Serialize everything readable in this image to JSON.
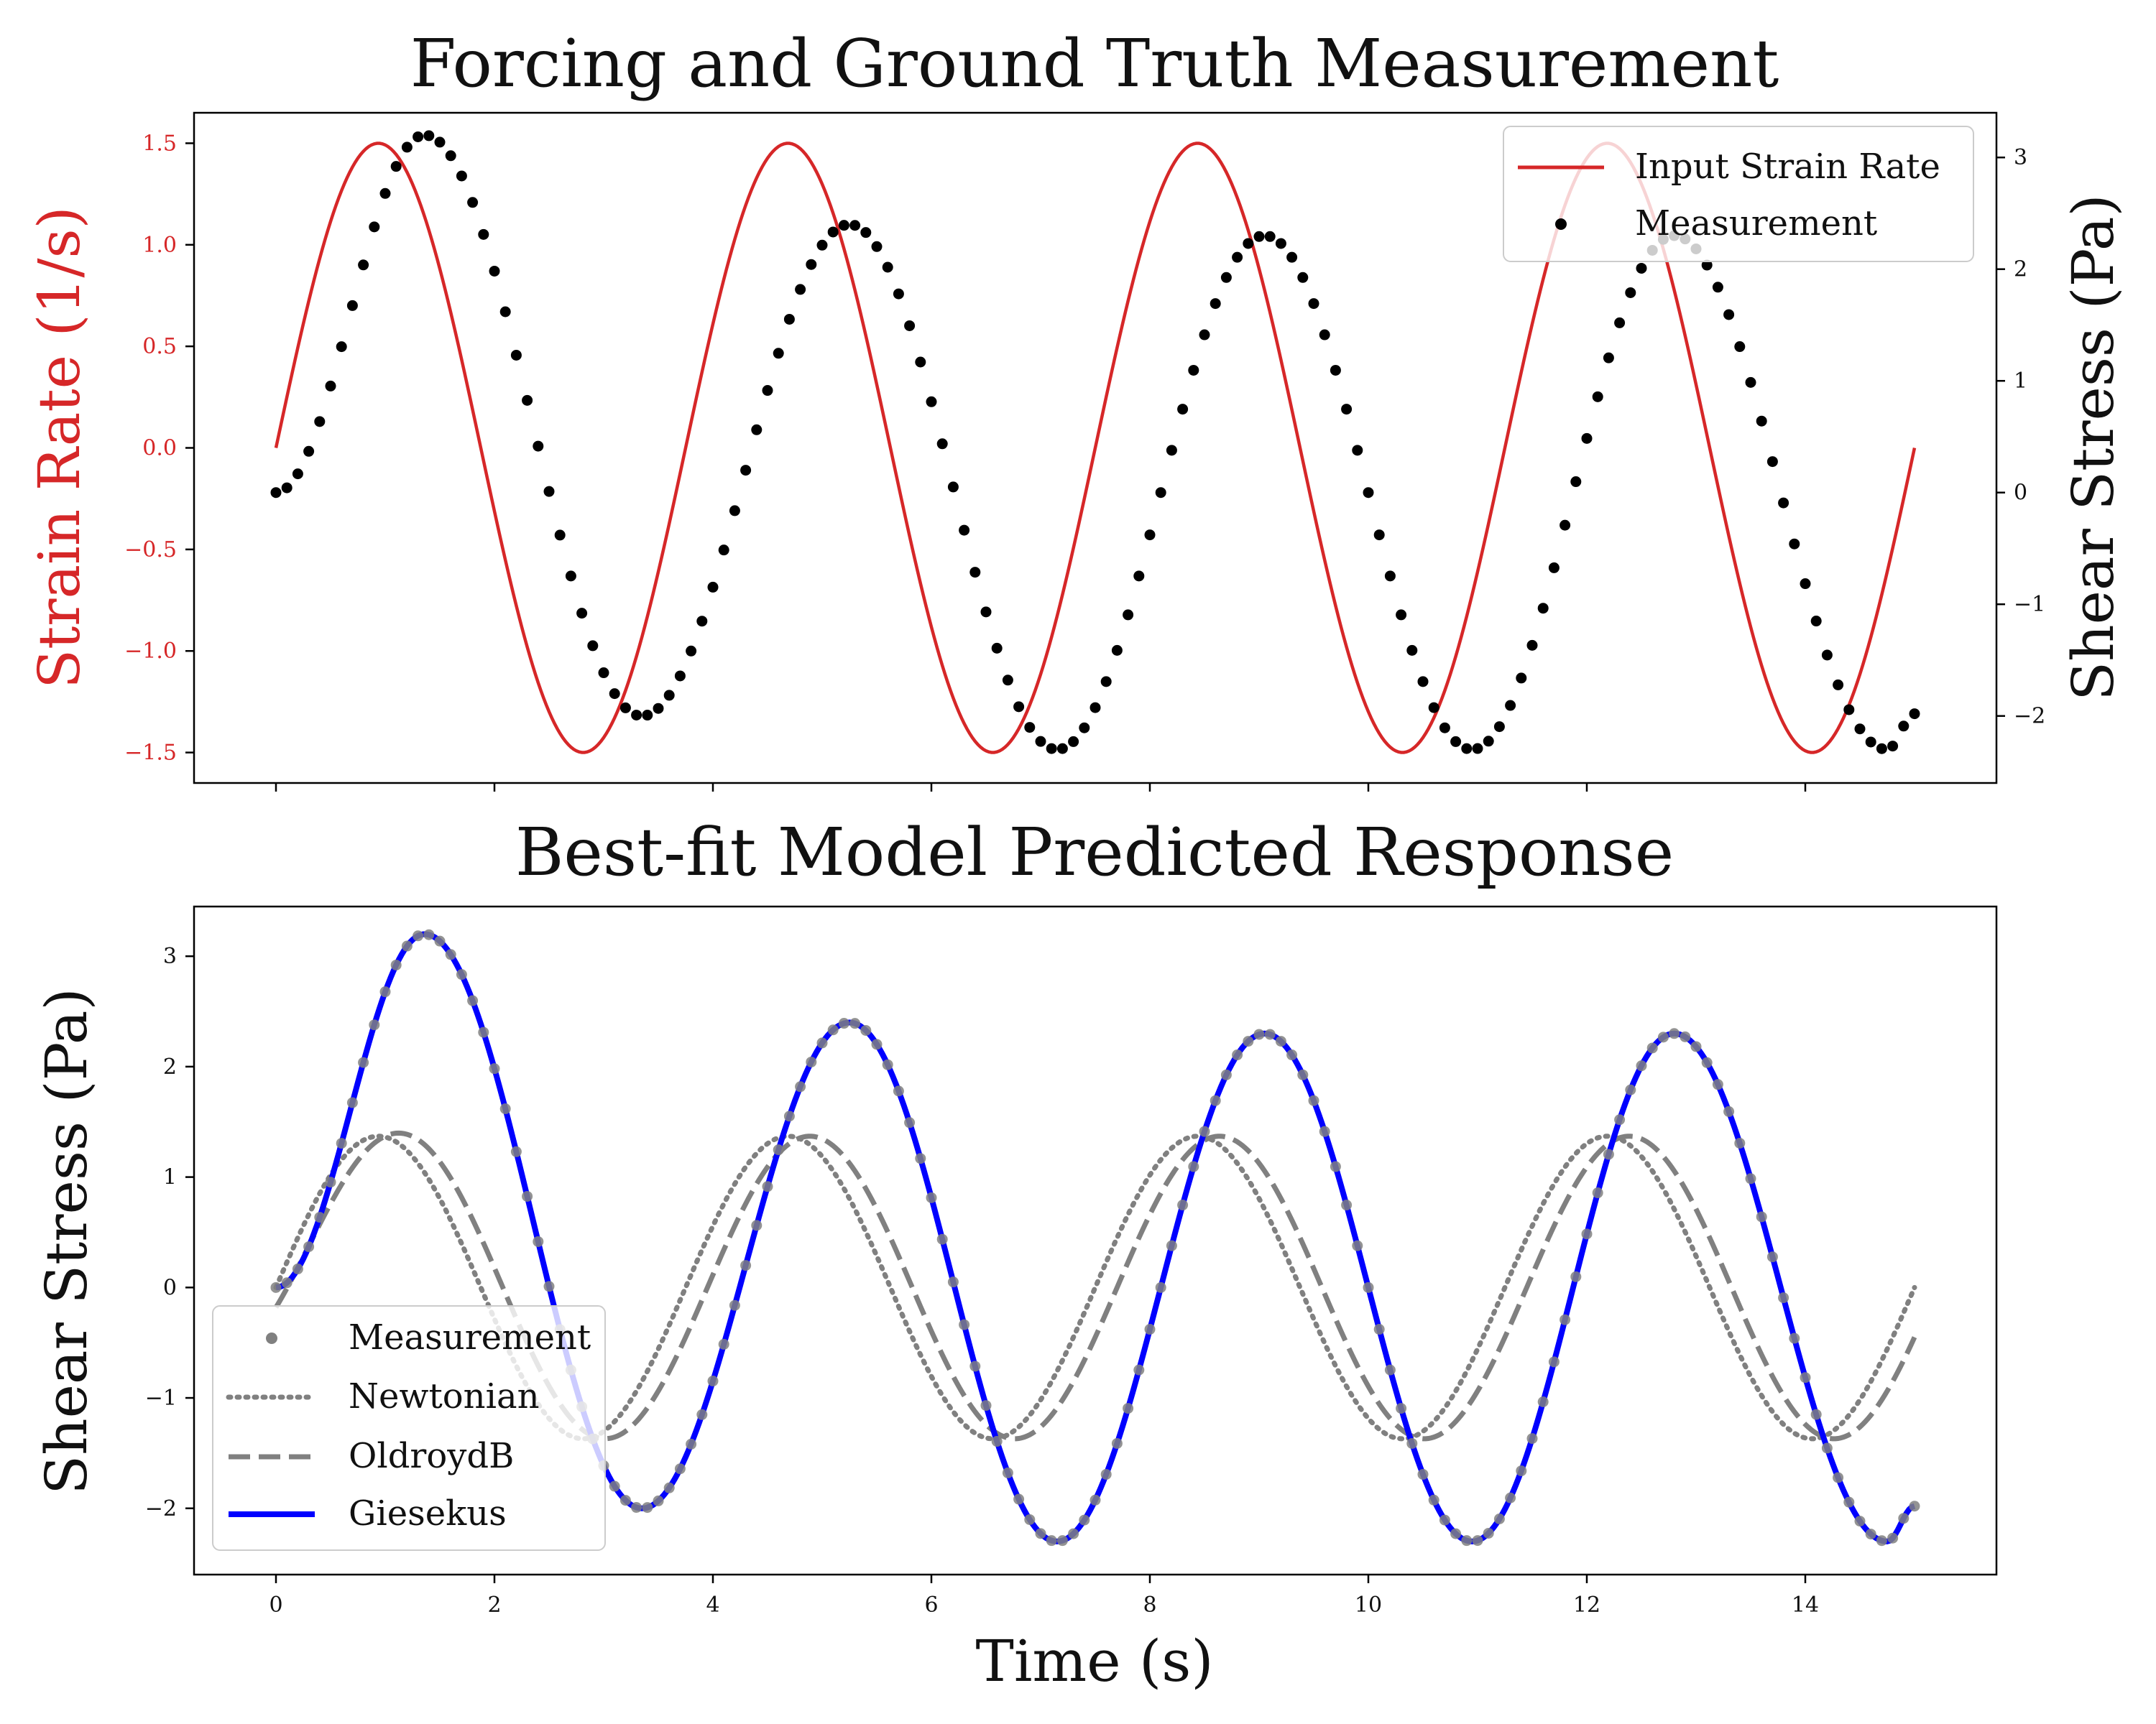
{
  "chart_data": [
    {
      "type": "line",
      "title": "Forcing and Ground Truth Measurement",
      "xlabel": "",
      "ylabel": "Strain Rate (1/s)",
      "y2label": "Shear Stress (Pa)",
      "xlim": [
        -0.75,
        15.75
      ],
      "ylim": [
        -1.65,
        1.65
      ],
      "y2lim": [
        -2.6,
        3.4
      ],
      "xticks": [
        0,
        2,
        4,
        6,
        8,
        10,
        12,
        14
      ],
      "yticks": [
        -1.5,
        -1.0,
        -0.5,
        0.0,
        0.5,
        1.0,
        1.5
      ],
      "yticklabels": [
        "−1.5",
        "−1.0",
        "−0.5",
        "0.0",
        "0.5",
        "1.0",
        "1.5"
      ],
      "y2ticks": [
        -2,
        -1,
        0,
        1,
        2,
        3
      ],
      "y2ticklabels": [
        "−2",
        "−1",
        "0",
        "1",
        "2",
        "3"
      ],
      "legend_position": "top-right",
      "series": [
        {
          "name": "Input Strain Rate",
          "axis": "left",
          "color": "#d62728",
          "style": "solid",
          "function": "1.5*sin(2*pi*t/3.75)",
          "t_range": [
            0,
            15
          ]
        },
        {
          "name": "Measurement",
          "axis": "right",
          "color": "#000000",
          "style": "points",
          "x": [
            0,
            1.36,
            3.35,
            5.25,
            7.15,
            9.05,
            10.95,
            12.8,
            14.75,
            15
          ],
          "y": [
            0,
            3.2,
            -2.0,
            2.4,
            -2.3,
            2.3,
            -2.3,
            2.3,
            -2.3,
            -1.98
          ]
        }
      ]
    },
    {
      "type": "line",
      "title": "Best-fit Model Predicted Response",
      "xlabel": "Time (s)",
      "ylabel": "Shear Stress (Pa)",
      "xlim": [
        -0.75,
        15.75
      ],
      "ylim": [
        -2.6,
        3.45
      ],
      "xticks": [
        0,
        2,
        4,
        6,
        8,
        10,
        12,
        14
      ],
      "yticks": [
        -2,
        -1,
        0,
        1,
        2,
        3
      ],
      "yticklabels": [
        "−2",
        "−1",
        "0",
        "1",
        "2",
        "3"
      ],
      "legend_position": "bottom-left",
      "series": [
        {
          "name": "Measurement",
          "color": "#808080",
          "style": "points",
          "x": [
            0,
            1.36,
            3.35,
            5.25,
            7.15,
            9.05,
            10.95,
            12.8,
            14.75,
            15
          ],
          "y": [
            0,
            3.2,
            -2.0,
            2.4,
            -2.3,
            2.3,
            -2.3,
            2.3,
            -2.3,
            -1.98
          ]
        },
        {
          "name": "Newtonian",
          "color": "#808080",
          "style": "dotted",
          "function": "1.37*sin(2*pi*t/3.75)",
          "t_range": [
            0,
            15
          ]
        },
        {
          "name": "OldroydB",
          "color": "#808080",
          "style": "dashed",
          "function": "1.37*sin(2*pi*(t-0.2)/3.75)+0.27*exp(-t/0.5)",
          "t_range": [
            0,
            15
          ]
        },
        {
          "name": "Giesekus",
          "color": "#0000ff",
          "style": "solid",
          "x": [
            0,
            1.36,
            3.35,
            5.25,
            7.15,
            9.05,
            10.95,
            12.8,
            14.75,
            15
          ],
          "y": [
            0,
            3.2,
            -2.0,
            2.4,
            -2.3,
            2.3,
            -2.3,
            2.3,
            -2.3,
            -1.98
          ]
        }
      ]
    }
  ]
}
